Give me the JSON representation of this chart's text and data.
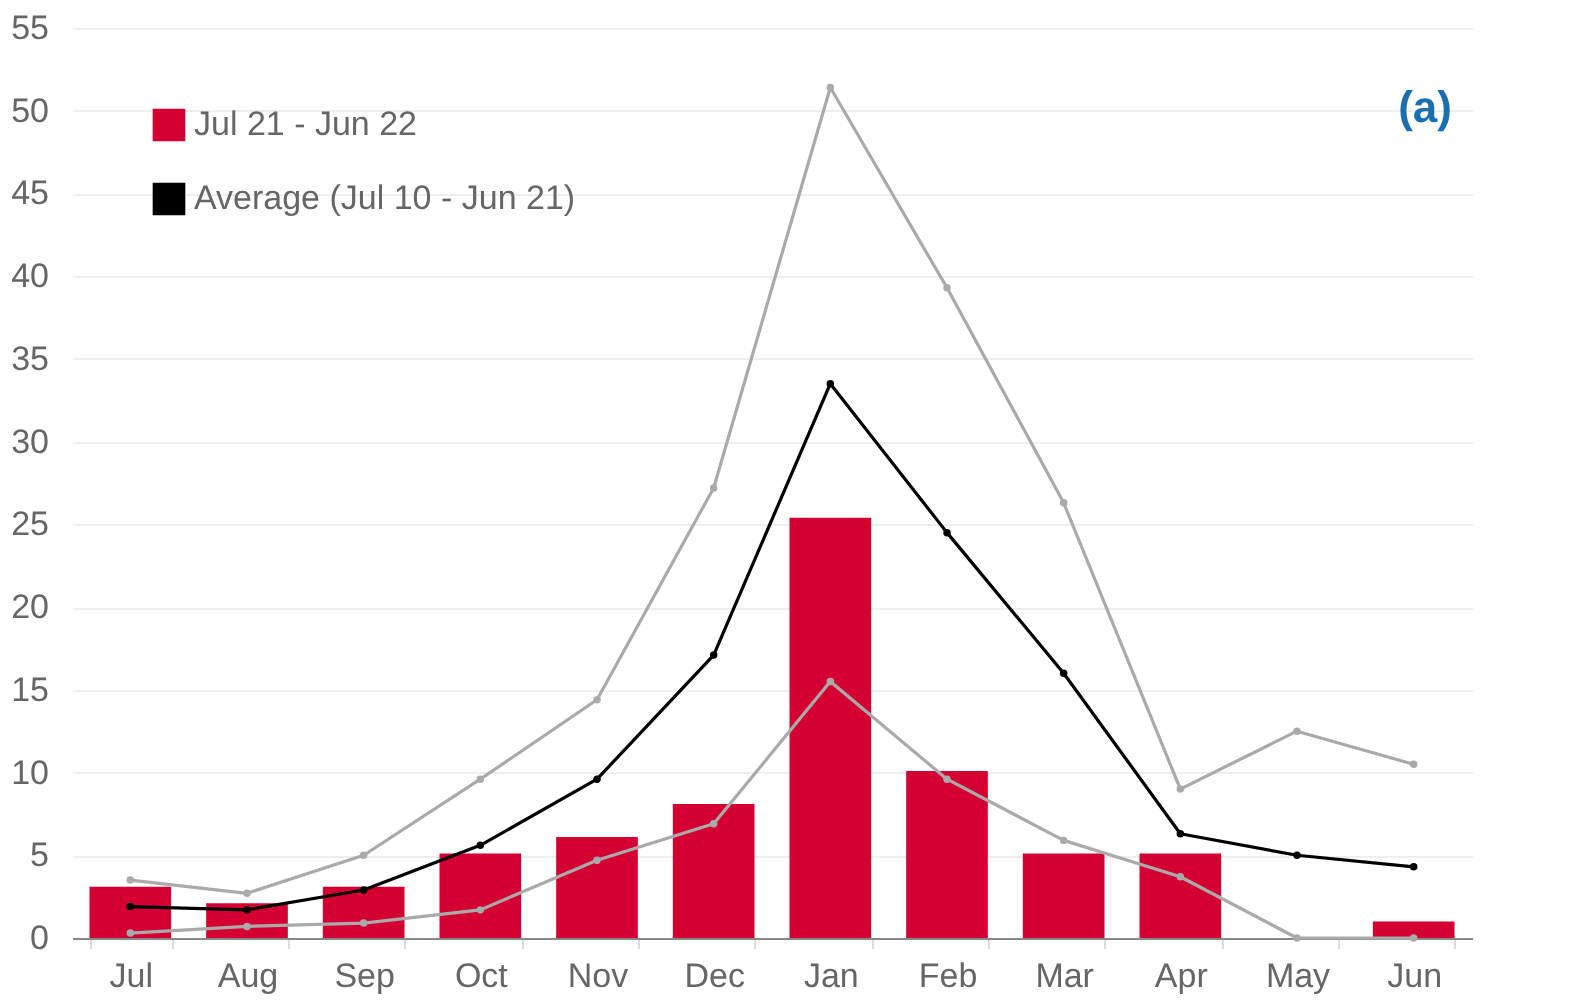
{
  "chart_data": {
    "type": "bar",
    "categories": [
      "Jul",
      "Aug",
      "Sep",
      "Oct",
      "Nov",
      "Dec",
      "Jan",
      "Feb",
      "Mar",
      "Apr",
      "May",
      "Jun"
    ],
    "series": [
      {
        "name": "Jul 21 - Jun 22",
        "color": "#d50032",
        "values": [
          3.1,
          2.1,
          3.1,
          5.1,
          6.1,
          8.1,
          25.4,
          10.1,
          5.1,
          5.1,
          0,
          1.0
        ]
      },
      {
        "name": "Average (Jul 10 - Jun 21)",
        "type": "line",
        "color": "#000000",
        "values": [
          1.9,
          1.7,
          2.9,
          5.6,
          9.6,
          17.1,
          33.5,
          24.5,
          16.0,
          6.3,
          5.0,
          4.3
        ]
      },
      {
        "type": "line",
        "color": "#aaaaaa",
        "values": [
          3.5,
          2.7,
          5.0,
          9.6,
          14.4,
          27.2,
          51.4,
          39.3,
          26.3,
          9.0,
          12.5,
          10.5
        ]
      },
      {
        "type": "line",
        "color": "#aaaaaa",
        "values": [
          0.3,
          0.7,
          0.9,
          1.7,
          4.7,
          6.9,
          15.5,
          9.6,
          5.9,
          3.7,
          0,
          0
        ]
      }
    ],
    "ylim": [
      0,
      55
    ],
    "yticks": [
      0,
      5,
      10,
      15,
      20,
      25,
      30,
      35,
      40,
      45,
      50,
      55
    ],
    "grid": "y",
    "legend": "top left",
    "marker": "circle",
    "line_style": "solid",
    "annotations": [
      "(a)"
    ]
  }
}
